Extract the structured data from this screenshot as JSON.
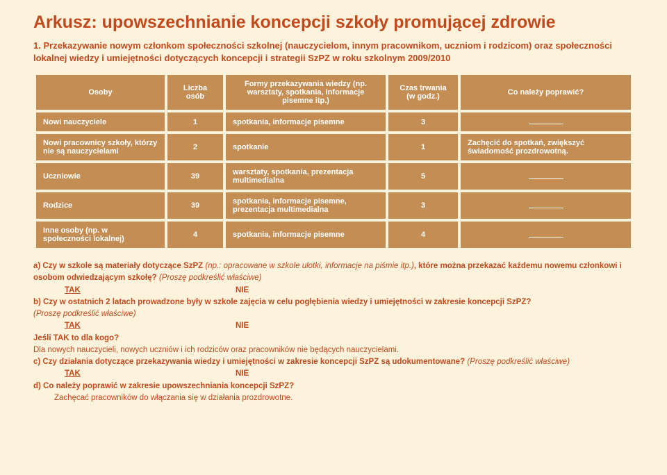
{
  "title": "Arkusz: upowszechnianie koncepcji szkoły promującej zdrowie",
  "desc_num": "1.",
  "desc": "Przekazywanie nowym członkom społeczności szkolnej (nauczycielom, innym pracownikom, uczniom i rodzicom) oraz społeczności lokalnej wiedzy i umiejętności dotyczących koncepcji i strategii SzPZ w roku szkolnym 2009/2010",
  "headers": {
    "osoby": "Osoby",
    "liczba": "Liczba osób",
    "formy": "Formy przekazywania wiedzy (np. warsztaty, spotkania, informacje pisemne itp.)",
    "czas": "Czas trwania (w godz.)",
    "co": "Co należy poprawić?"
  },
  "rows": [
    {
      "osoby": "Nowi nauczyciele",
      "liczba": "1",
      "formy": "spotkania, informacje pisemne",
      "czas": "3",
      "co": ""
    },
    {
      "osoby": "Nowi pracownicy szkoły, którzy nie są nauczycielami",
      "liczba": "2",
      "formy": "spotkanie",
      "czas": "1",
      "co": "Zachęcić do spotkań, zwiększyć świadomość prozdrowotną."
    },
    {
      "osoby": "Uczniowie",
      "liczba": "39",
      "formy": "warsztaty, spotkania, prezentacja multimedialna",
      "czas": "5",
      "co": ""
    },
    {
      "osoby": "Rodzice",
      "liczba": "39",
      "formy": "spotkania, informacje pisemne, prezentacja multimedialna",
      "czas": "3",
      "co": ""
    },
    {
      "osoby": "Inne osoby (np. w społeczności lokalnej)",
      "liczba": "4",
      "formy": "spotkania,\n informacje pisemne",
      "czas": "4",
      "co": ""
    }
  ],
  "q": {
    "a1": "a) Czy w szkole są materiały dotyczące SzPZ ",
    "a1i": "(np.: opracowane w szkole ulotki, informacje na piśmie itp.)",
    "a1b": ", które można przekazać każdemu nowemu członkowi i osobom odwiedzającym szkołę? ",
    "a1p": "(Proszę podkreślić właściwe)",
    "tak": "TAK",
    "nie": "NIE",
    "b": "b) Czy w ostatnich 2 latach prowadzone były w szkole zajęcia w celu pogłębienia wiedzy i umiejętności w zakresie koncepcji SzPZ?",
    "bp": "(Proszę podkreślić właściwe)",
    "jesli": "Jeśli TAK to dla kogo?",
    "jesli_ans": "Dla nowych nauczycieli, nowych uczniów i ich rodziców oraz pracowników nie będących nauczycielami.",
    "c": "c) Czy działania dotyczące przekazywania wiedzy i umiejętności w zakresie koncepcji SzPZ są udokumentowane? ",
    "cp": "(Proszę podkreślić właściwe)",
    "d": "d) Co należy poprawić w zakresie upowszechniania koncepcji SzPZ?",
    "d_ans": "Zachęcać pracowników do włączania się w działania prozdrowotne."
  }
}
